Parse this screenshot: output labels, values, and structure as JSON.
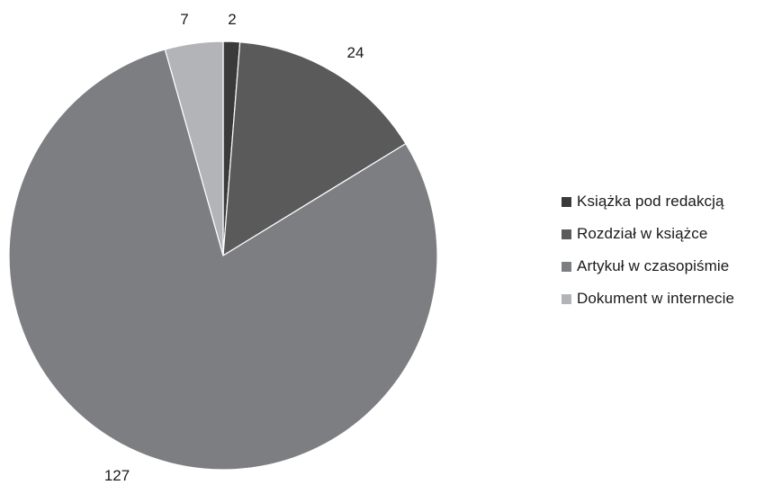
{
  "chart_data": {
    "type": "pie",
    "categories": [
      "Książka pod redakcją",
      "Rozdział w książce",
      "Artykuł w czasopiśmie",
      "Dokument w internecie"
    ],
    "values": [
      2,
      24,
      127,
      7
    ],
    "data_labels": [
      "2",
      "24",
      "127",
      "7"
    ],
    "colors": [
      "#3a3a3a",
      "#5a5a5a",
      "#7d7e82",
      "#b3b4b7"
    ],
    "start_angle_deg": 0,
    "direction": "clockwise",
    "legend_position": "right"
  }
}
